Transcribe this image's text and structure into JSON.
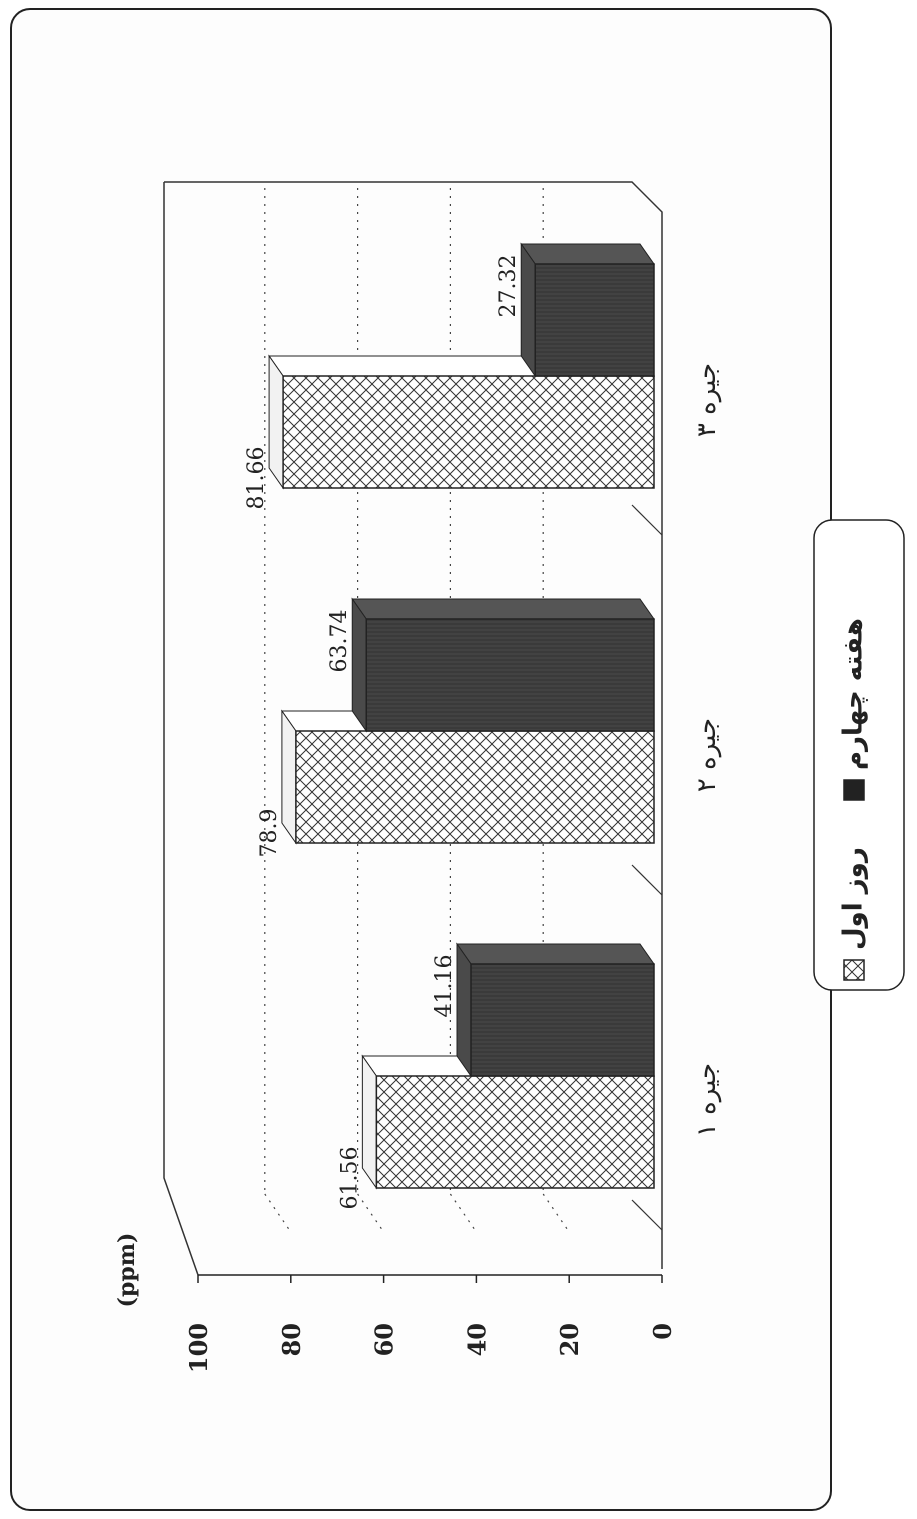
{
  "chart_data": {
    "type": "bar",
    "unit": "(ppm)",
    "categories": [
      "جیره ۱",
      "جیره ۲",
      "جیره ۳"
    ],
    "series": [
      {
        "name": "روز اول",
        "values": [
          61.56,
          78.9,
          81.66
        ],
        "pattern": "crosshatch",
        "color": "#ffffff"
      },
      {
        "name": "هفته چهارم",
        "values": [
          41.16,
          63.74,
          27.32
        ],
        "pattern": "dark",
        "color": "#3a3a3a"
      }
    ],
    "ylim": [
      0,
      100
    ],
    "yticks": [
      0,
      20,
      40,
      60,
      80,
      100
    ],
    "grid": true,
    "legend_position": "right"
  }
}
